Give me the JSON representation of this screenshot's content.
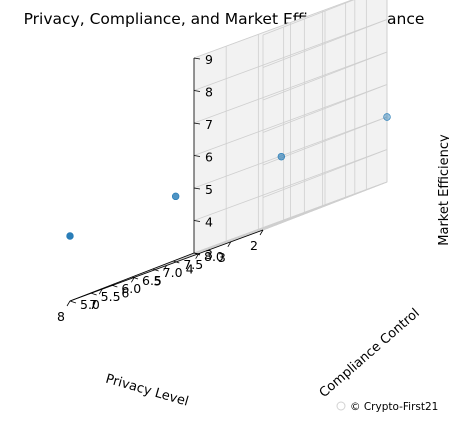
{
  "chart_data": {
    "type": "scatter",
    "projection": "3d",
    "title": "Privacy, Compliance, and Market Efficiency Balance",
    "xlabel": "Privacy Level",
    "ylabel": "Compliance Control",
    "zlabel": "Market Efficiency",
    "x_ticks": [
      "2",
      "3",
      "4",
      "5",
      "6",
      "7",
      "8"
    ],
    "y_ticks": [
      "5.0",
      "5.5",
      "6.0",
      "6.5",
      "7.0",
      "7.5",
      "8.0"
    ],
    "z_ticks": [
      "3",
      "4",
      "5",
      "6",
      "7",
      "8",
      "9"
    ],
    "xlim": [
      2,
      8
    ],
    "ylim": [
      5,
      8
    ],
    "zlim": [
      3,
      9
    ],
    "grid": true,
    "marker_color": "#1f77b4",
    "points": [
      {
        "x": 2,
        "y": 8,
        "z": 5
      },
      {
        "x": 4,
        "y": 7,
        "z": 5
      },
      {
        "x": 6,
        "y": 6,
        "z": 5
      },
      {
        "x": 8,
        "y": 5,
        "z": 5
      }
    ]
  },
  "watermark": "© Crypto-First21"
}
